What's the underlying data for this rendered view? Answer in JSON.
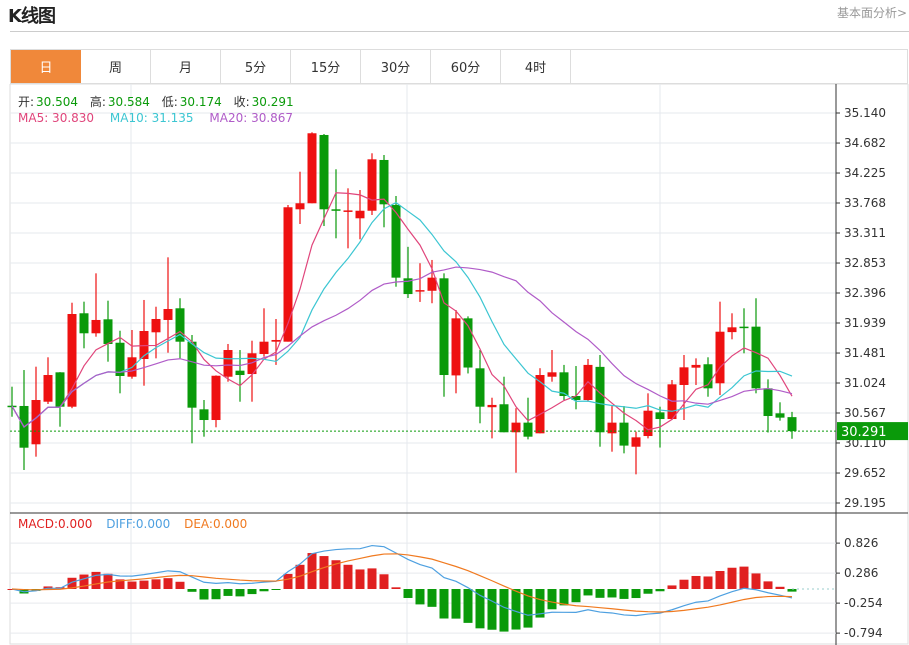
{
  "header": {
    "title": "K线图",
    "link": "基本面分析>"
  },
  "tabs": [
    {
      "label": "日",
      "active": true
    },
    {
      "label": "周"
    },
    {
      "label": "月"
    },
    {
      "label": "5分"
    },
    {
      "label": "15分"
    },
    {
      "label": "30分"
    },
    {
      "label": "60分"
    },
    {
      "label": "4时"
    }
  ],
  "ohlc_legend": {
    "open_label": "开:",
    "open": "30.504",
    "high_label": "高:",
    "high": "30.584",
    "low_label": "低:",
    "low": "30.174",
    "close_label": "收:",
    "close": "30.291"
  },
  "ma_legend": {
    "ma5": "MA5: 30.830",
    "ma10": "MA10: 31.135",
    "ma20": "MA20: 30.867"
  },
  "macd_legend": {
    "macd": "MACD:0.000",
    "diff": "DIFF:0.000",
    "dea": "DEA:0.000"
  },
  "colors": {
    "up": "#ee1111",
    "down": "#0a9a0a",
    "ma5": "#e0457b",
    "ma10": "#3cc6d2",
    "ma20": "#b05cc8",
    "diff": "#4ea0e0",
    "dea": "#f07a20",
    "accent": "#f0883a"
  },
  "chart_data": {
    "type": "candlestick",
    "price_axis_ticks": [
      "35.140",
      "34.682",
      "34.225",
      "33.768",
      "33.311",
      "32.853",
      "32.396",
      "31.939",
      "31.481",
      "31.024",
      "30.567",
      "30.110",
      "29.652",
      "29.195"
    ],
    "price_range": [
      29.195,
      35.14
    ],
    "last_price": "30.291",
    "macd_axis_ticks": [
      "0.826",
      "0.286",
      "-0.254",
      "-0.794"
    ],
    "candles": [
      [
        30.678,
        30.67,
        30.968,
        30.51
      ],
      [
        30.674,
        30.038,
        31.222,
        29.698
      ],
      [
        30.09,
        30.765,
        31.273,
        29.901
      ],
      [
        30.739,
        31.146,
        31.416,
        30.704
      ],
      [
        31.187,
        30.663,
        31.19,
        30.358
      ],
      [
        30.663,
        32.076,
        32.248,
        30.64
      ],
      [
        32.087,
        31.782,
        32.264,
        31.553
      ],
      [
        31.782,
        31.985,
        32.696,
        31.73
      ],
      [
        31.995,
        31.619,
        32.279,
        31.349
      ],
      [
        31.638,
        31.131,
        31.821,
        30.867
      ],
      [
        31.12,
        31.416,
        31.832,
        31.09
      ],
      [
        31.39,
        31.817,
        32.29,
        30.983
      ],
      [
        31.797,
        32.0,
        32.187,
        31.4
      ],
      [
        31.985,
        32.152,
        32.94,
        31.486
      ],
      [
        32.163,
        31.654,
        32.316,
        31.4
      ],
      [
        31.654,
        30.648,
        31.756,
        30.105
      ],
      [
        30.623,
        30.46,
        30.765,
        30.206
      ],
      [
        30.46,
        31.135,
        31.14,
        30.349
      ],
      [
        31.12,
        31.527,
        31.619,
        31.044
      ],
      [
        31.212,
        31.146,
        31.527,
        30.739
      ],
      [
        31.161,
        31.477,
        31.669,
        30.739
      ],
      [
        31.466,
        31.654,
        32.163,
        31.425
      ],
      [
        31.654,
        31.68,
        32.0,
        31.3
      ],
      [
        31.654,
        33.703,
        33.738,
        31.654
      ],
      [
        33.672,
        33.764,
        34.245,
        33.448
      ],
      [
        33.764,
        34.831,
        34.846,
        33.764
      ],
      [
        34.805,
        33.672,
        34.82,
        33.417
      ],
      [
        33.672,
        33.65,
        34.282,
        33.23
      ],
      [
        33.645,
        33.655,
        33.992,
        33.077
      ],
      [
        33.535,
        33.65,
        33.966,
        33.215
      ],
      [
        33.65,
        34.434,
        34.526,
        33.585
      ],
      [
        34.424,
        33.748,
        34.5,
        33.398
      ],
      [
        33.738,
        32.63,
        33.875,
        32.492
      ],
      [
        32.62,
        32.38,
        33.1,
        32.32
      ],
      [
        32.43,
        32.44,
        32.85,
        32.26
      ],
      [
        32.43,
        32.63,
        32.9,
        32.24
      ],
      [
        32.62,
        31.146,
        32.696,
        30.815
      ],
      [
        31.14,
        32.01,
        32.137,
        30.867
      ],
      [
        32.01,
        31.26,
        32.04,
        31.17
      ],
      [
        31.248,
        30.663,
        31.527,
        30.41
      ],
      [
        30.655,
        30.69,
        30.8,
        30.18
      ],
      [
        30.7,
        30.273,
        31.12,
        30.273
      ],
      [
        30.273,
        30.42,
        30.64,
        29.657
      ],
      [
        30.42,
        30.206,
        30.8,
        30.165
      ],
      [
        30.257,
        31.146,
        31.25,
        30.257
      ],
      [
        31.12,
        31.187,
        31.527,
        31.044
      ],
      [
        31.187,
        30.826,
        31.3,
        30.765
      ],
      [
        30.826,
        30.765,
        31.283,
        30.623
      ],
      [
        30.765,
        31.3,
        31.39,
        30.74
      ],
      [
        31.27,
        30.273,
        31.451,
        30.053
      ],
      [
        30.257,
        30.42,
        30.673,
        29.977
      ],
      [
        30.42,
        30.07,
        30.673,
        29.952
      ],
      [
        30.053,
        30.196,
        30.282,
        29.632
      ],
      [
        30.216,
        30.602,
        30.867,
        30.18
      ],
      [
        30.577,
        30.475,
        30.663,
        30.04
      ],
      [
        30.475,
        31.004,
        31.07,
        30.46
      ],
      [
        30.994,
        31.263,
        31.451,
        30.46
      ],
      [
        31.258,
        31.3,
        31.4,
        30.994
      ],
      [
        31.31,
        30.943,
        31.416,
        30.815
      ],
      [
        31.02,
        31.806,
        32.264,
        30.84
      ],
      [
        31.8,
        31.873,
        32.087,
        31.69
      ],
      [
        31.883,
        31.868,
        32.163,
        31.477
      ],
      [
        31.883,
        30.943,
        32.316,
        30.867
      ],
      [
        30.943,
        30.521,
        31.08,
        30.27
      ],
      [
        30.562,
        30.496,
        30.73,
        30.45
      ],
      [
        30.504,
        30.291,
        30.584,
        30.174
      ]
    ],
    "candle_fields": [
      "open",
      "close",
      "high",
      "low"
    ],
    "indicators": [
      "MA5",
      "MA10",
      "MA20",
      "MACD"
    ]
  }
}
